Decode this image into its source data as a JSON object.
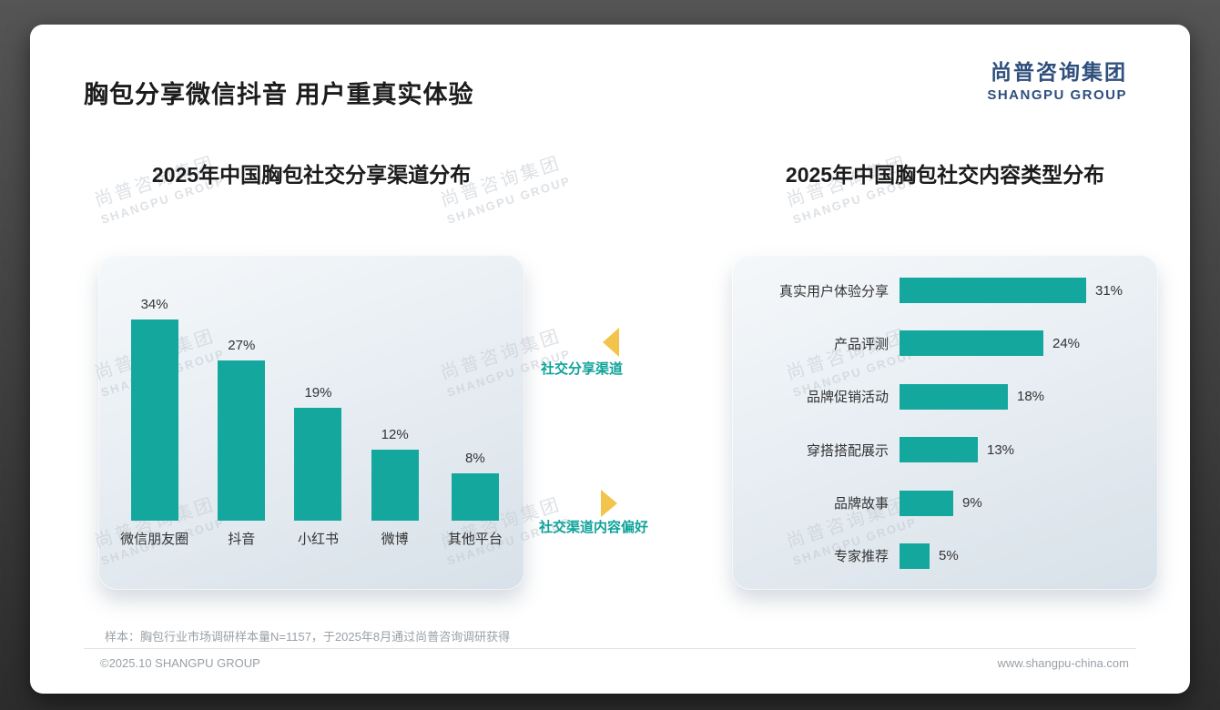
{
  "slide": {
    "title": "胸包分享微信抖音 用户重真实体验",
    "logo": {
      "cn": "尚普咨询集团",
      "en": "SHANGPU GROUP"
    },
    "watermark": {
      "cn": "尚普咨询集团",
      "en": "SHANGPU GROUP"
    },
    "annotations": {
      "left": "社交分享渠道",
      "right": "社交渠道内容偏好"
    },
    "footnote": "样本：胸包行业市场调研样本量N=1157，于2025年8月通过尚普咨询调研获得",
    "footer_left": "©2025.10 SHANGPU GROUP",
    "footer_right": "www.shangpu-china.com",
    "colors": {
      "accent_teal": "#14A79D",
      "logo_blue": "#2F4F7D",
      "arrow_yellow": "#F3C44C"
    }
  },
  "chart_data": [
    {
      "type": "bar",
      "orientation": "vertical",
      "title": "2025年中国胸包社交分享渠道分布",
      "categories": [
        "微信朋友圈",
        "抖音",
        "小红书",
        "微博",
        "其他平台"
      ],
      "values": [
        34,
        27,
        19,
        12,
        8
      ],
      "unit": "%",
      "ylim": [
        0,
        40
      ],
      "grid": false,
      "legend": false,
      "bar_color": "#14A79D"
    },
    {
      "type": "bar",
      "orientation": "horizontal",
      "title": "2025年中国胸包社交内容类型分布",
      "categories": [
        "真实用户体验分享",
        "产品评测",
        "品牌促销活动",
        "穿搭搭配展示",
        "品牌故事",
        "专家推荐"
      ],
      "values": [
        31,
        24,
        18,
        13,
        9,
        5
      ],
      "unit": "%",
      "xlim": [
        0,
        35
      ],
      "grid": false,
      "legend": false,
      "bar_color": "#14A79D"
    }
  ]
}
